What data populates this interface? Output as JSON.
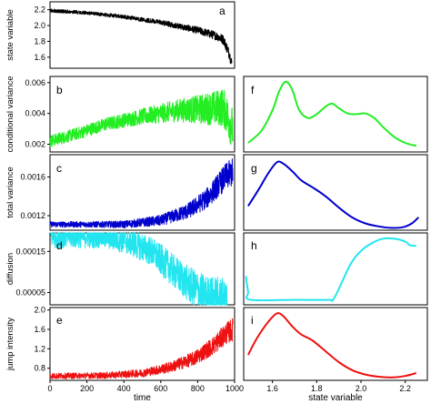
{
  "chart_data": [
    {
      "panel": "a",
      "type": "line",
      "ylabel": "state variable",
      "ylim": [
        1.46,
        2.3
      ],
      "yticks": [
        "2.2",
        "2.0",
        "1.8",
        "1.6"
      ],
      "ytick_values": [
        2.2,
        2.0,
        1.8,
        1.6
      ],
      "xlim": [
        0,
        1000
      ],
      "color": "#000000",
      "trend": [
        [
          0,
          2.19
        ],
        [
          200,
          2.16
        ],
        [
          400,
          2.11
        ],
        [
          600,
          2.04
        ],
        [
          800,
          1.94
        ],
        [
          900,
          1.87
        ],
        [
          940,
          1.82
        ],
        [
          970,
          1.65
        ],
        [
          985,
          1.52
        ]
      ],
      "noise": 0.022,
      "noise_growth": 3
    },
    {
      "panel": "b",
      "type": "line",
      "ylabel": "conditional variance",
      "ylim": [
        0.0015,
        0.0064
      ],
      "yticks": [
        "0.006",
        "0.004",
        "0.002"
      ],
      "ytick_values": [
        0.006,
        0.004,
        0.002
      ],
      "xlim": [
        0,
        1000
      ],
      "color": "#22ee22",
      "trend": [
        [
          0,
          0.0022
        ],
        [
          150,
          0.0027
        ],
        [
          300,
          0.0033
        ],
        [
          500,
          0.0038
        ],
        [
          700,
          0.0042
        ],
        [
          850,
          0.0043
        ],
        [
          940,
          0.0044
        ],
        [
          990,
          0.003
        ]
      ],
      "noise": 0.0004,
      "noise_growth": 3.5
    },
    {
      "panel": "c",
      "type": "line",
      "ylabel": "total variance",
      "ylim": [
        0.00105,
        0.00183
      ],
      "yticks": [
        "0.0016",
        "0.0012"
      ],
      "ytick_values": [
        0.0016,
        0.0012
      ],
      "xlim": [
        0,
        1000
      ],
      "color": "#0000cc",
      "trend": [
        [
          0,
          0.00111
        ],
        [
          400,
          0.00111
        ],
        [
          600,
          0.00115
        ],
        [
          750,
          0.00125
        ],
        [
          850,
          0.00138
        ],
        [
          950,
          0.0016
        ],
        [
          990,
          0.00165
        ]
      ],
      "noise": 3e-05,
      "noise_growth": 5
    },
    {
      "panel": "d",
      "type": "line",
      "ylabel": "diffusion",
      "ylim": [
        2e-05,
        0.000195
      ],
      "yticks": [
        "0.00015",
        "0.00005"
      ],
      "ytick_values": [
        0.00015,
        5e-05
      ],
      "xlim": [
        0,
        1000
      ],
      "color": "#22e5f0",
      "trend": [
        [
          0,
          0.000188
        ],
        [
          300,
          0.000188
        ],
        [
          420,
          0.000175
        ],
        [
          550,
          0.00015
        ],
        [
          650,
          0.00011
        ],
        [
          750,
          7e-05
        ],
        [
          850,
          4e-05
        ],
        [
          960,
          3e-05
        ]
      ],
      "noise": 3e-05,
      "noise_growth": 2
    },
    {
      "panel": "e",
      "type": "line",
      "ylabel": "jump intensity",
      "xlabel": "time",
      "ylim": [
        0.55,
        2.05
      ],
      "yticks": [
        "2.0",
        "1.6",
        "1.2",
        "0.8"
      ],
      "ytick_values": [
        2.0,
        1.6,
        1.2,
        0.8
      ],
      "xlim": [
        0,
        1000
      ],
      "xticks": [
        "0",
        "200",
        "400",
        "600",
        "800",
        "1000"
      ],
      "xtick_values": [
        0,
        200,
        400,
        600,
        800,
        1000
      ],
      "color": "#ee1111",
      "trend": [
        [
          0,
          0.64
        ],
        [
          300,
          0.65
        ],
        [
          500,
          0.7
        ],
        [
          650,
          0.82
        ],
        [
          780,
          1.0
        ],
        [
          880,
          1.25
        ],
        [
          950,
          1.5
        ],
        [
          990,
          1.6
        ]
      ],
      "noise": 0.06,
      "noise_growth": 4
    },
    {
      "panel": "f",
      "type": "line",
      "xlim": [
        1.47,
        2.3
      ],
      "color": "#22ee22",
      "x": [
        1.49,
        1.55,
        1.6,
        1.63,
        1.66,
        1.69,
        1.72,
        1.76,
        1.8,
        1.84,
        1.87,
        1.9,
        1.94,
        1.98,
        2.02,
        2.06,
        2.1,
        2.15,
        2.2,
        2.25
      ],
      "y": [
        0.12,
        0.28,
        0.55,
        0.8,
        0.93,
        0.82,
        0.56,
        0.45,
        0.5,
        0.6,
        0.64,
        0.58,
        0.51,
        0.5,
        0.51,
        0.45,
        0.33,
        0.2,
        0.12,
        0.08
      ]
    },
    {
      "panel": "g",
      "type": "line",
      "xlim": [
        1.47,
        2.3
      ],
      "color": "#0000cc",
      "x": [
        1.49,
        1.54,
        1.58,
        1.62,
        1.65,
        1.69,
        1.73,
        1.78,
        1.84,
        1.9,
        1.96,
        2.02,
        2.08,
        2.14,
        2.19,
        2.23,
        2.26
      ],
      "y": [
        0.32,
        0.55,
        0.75,
        0.9,
        0.88,
        0.78,
        0.66,
        0.57,
        0.45,
        0.3,
        0.17,
        0.09,
        0.05,
        0.03,
        0.04,
        0.09,
        0.17
      ]
    },
    {
      "panel": "h",
      "type": "line",
      "xlim": [
        1.47,
        2.3
      ],
      "color": "#22e5f0",
      "x": [
        1.48,
        1.49,
        1.5,
        1.7,
        1.85,
        1.88,
        1.95,
        2.0,
        2.05,
        2.1,
        2.15,
        2.2,
        2.22,
        2.25
      ],
      "y": [
        0.4,
        0.18,
        0.07,
        0.07,
        0.07,
        0.1,
        0.55,
        0.75,
        0.86,
        0.92,
        0.92,
        0.88,
        0.83,
        0.82
      ]
    },
    {
      "panel": "i",
      "type": "line",
      "xlabel": "state variable",
      "xlim": [
        1.47,
        2.3
      ],
      "xticks": [
        "1.6",
        "1.8",
        "2.0",
        "2.2"
      ],
      "xtick_values": [
        1.6,
        1.8,
        2.0,
        2.2
      ],
      "color": "#ee1111",
      "x": [
        1.49,
        1.53,
        1.58,
        1.62,
        1.65,
        1.69,
        1.73,
        1.78,
        1.84,
        1.9,
        1.96,
        2.02,
        2.08,
        2.14,
        2.2,
        2.25
      ],
      "y": [
        0.35,
        0.58,
        0.8,
        0.92,
        0.88,
        0.74,
        0.63,
        0.55,
        0.4,
        0.25,
        0.14,
        0.08,
        0.05,
        0.04,
        0.06,
        0.1
      ]
    }
  ]
}
